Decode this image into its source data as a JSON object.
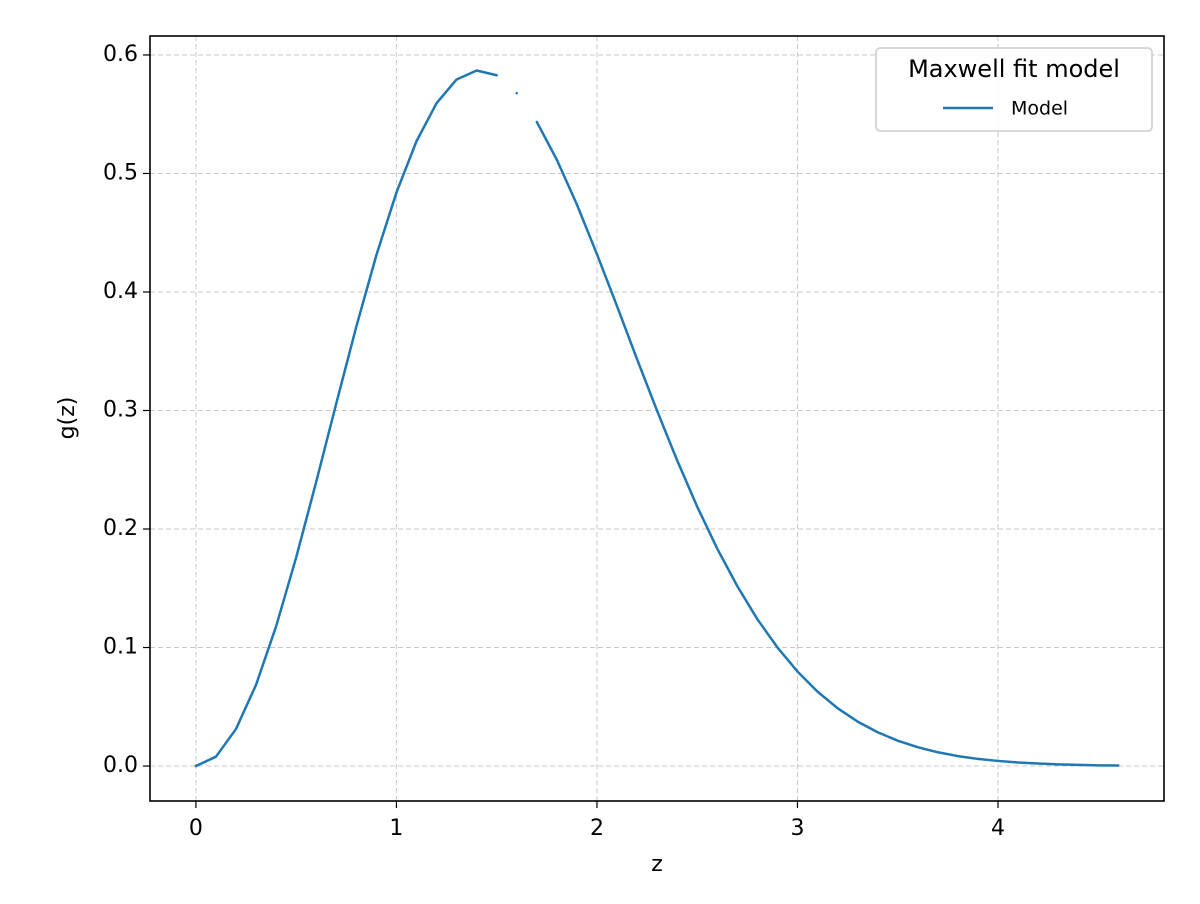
{
  "chart_data": {
    "type": "line",
    "xlabel": "z",
    "ylabel": "g(z)",
    "x": [
      0,
      0.1,
      0.2,
      0.3,
      0.4,
      0.5,
      0.6,
      0.7,
      0.8,
      0.9,
      1.0,
      1.1,
      1.2,
      1.3,
      1.4,
      1.5,
      1.55,
      1.6,
      1.65,
      1.7,
      1.8,
      1.9,
      2.0,
      2.1,
      2.2,
      2.3,
      2.4,
      2.5,
      2.6,
      2.7,
      2.8,
      2.9,
      3.0,
      3.1,
      3.2,
      3.3,
      3.4,
      3.5,
      3.6,
      3.7,
      3.8,
      3.9,
      4.0,
      4.1,
      4.2,
      4.3,
      4.4,
      4.5,
      4.6
    ],
    "series": [
      {
        "name": "Model",
        "color": "#1f77b4",
        "values": [
          0,
          0.0079,
          0.0313,
          0.0686,
          0.1179,
          0.176,
          0.2399,
          0.306,
          0.3708,
          0.4311,
          0.4839,
          0.5272,
          0.5593,
          0.5793,
          0.5869,
          0.5829,
          null,
          0.5678,
          null,
          0.5435,
          0.5116,
          0.4738,
          0.4319,
          0.3881,
          0.3433,
          0.2997,
          0.2579,
          0.2189,
          0.1834,
          0.1518,
          0.1239,
          0.1001,
          0.0798,
          0.0628,
          0.0488,
          0.0375,
          0.0285,
          0.0214,
          0.0159,
          0.0116,
          0.0084,
          0.006,
          0.0043,
          0.003,
          0.0021,
          0.0014,
          0.001,
          0.0006,
          0.0004
        ]
      }
    ],
    "legend_title": "Maxwell fit model",
    "legend_position": "upper right",
    "xlim": [
      -0.229,
      4.828
    ],
    "ylim": [
      -0.0295,
      0.616
    ],
    "xticks": [
      0,
      1,
      2,
      3,
      4
    ],
    "yticks": [
      {
        "value": 0,
        "label": "0.0"
      },
      0.1,
      0.2,
      0.3,
      0.4,
      0.5,
      0.6
    ],
    "grid": true
  }
}
